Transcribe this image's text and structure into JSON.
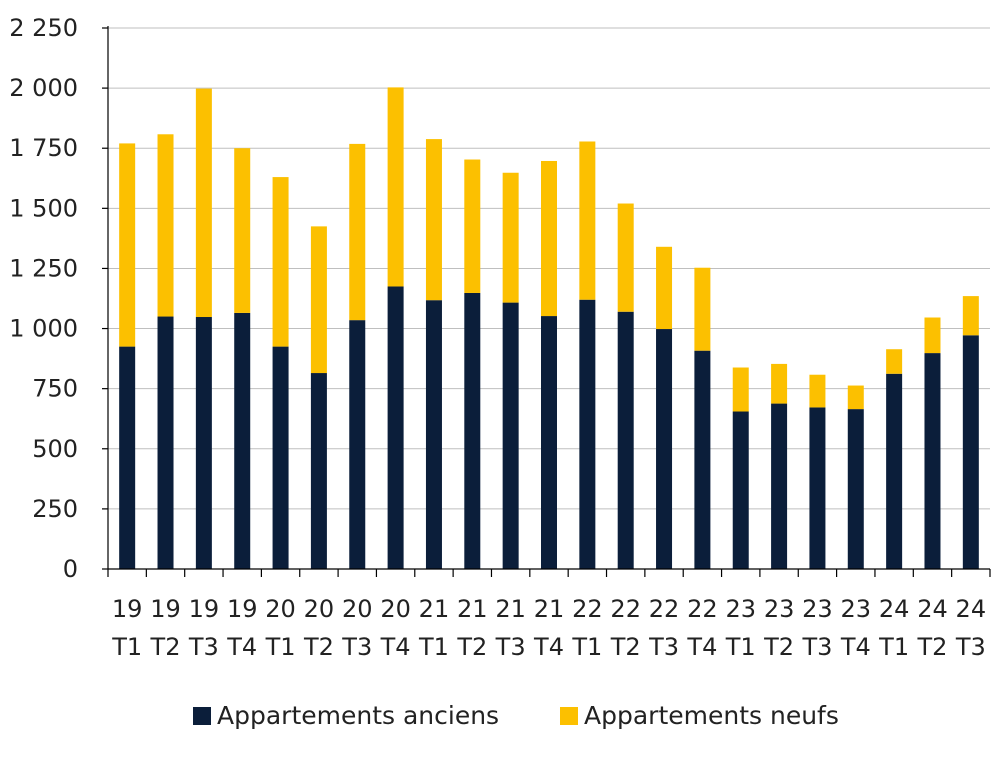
{
  "chart_data": {
    "type": "bar",
    "stacked": true,
    "categories": [
      [
        "19",
        "T1"
      ],
      [
        "19",
        "T2"
      ],
      [
        "19",
        "T3"
      ],
      [
        "19",
        "T4"
      ],
      [
        "20",
        "T1"
      ],
      [
        "20",
        "T2"
      ],
      [
        "20",
        "T3"
      ],
      [
        "20",
        "T4"
      ],
      [
        "21",
        "T1"
      ],
      [
        "21",
        "T2"
      ],
      [
        "21",
        "T3"
      ],
      [
        "21",
        "T4"
      ],
      [
        "22",
        "T1"
      ],
      [
        "22",
        "T2"
      ],
      [
        "22",
        "T3"
      ],
      [
        "22",
        "T4"
      ],
      [
        "23",
        "T1"
      ],
      [
        "23",
        "T2"
      ],
      [
        "23",
        "T3"
      ],
      [
        "23",
        "T4"
      ],
      [
        "24",
        "T1"
      ],
      [
        "24",
        "T2"
      ],
      [
        "24",
        "T3"
      ]
    ],
    "series": [
      {
        "name": "Appartements anciens",
        "color": "#0b1e3a",
        "values": [
          925,
          1050,
          1048,
          1065,
          925,
          815,
          1035,
          1175,
          1118,
          1148,
          1108,
          1052,
          1120,
          1070,
          998,
          908,
          655,
          688,
          672,
          665,
          812,
          898,
          972
        ]
      },
      {
        "name": "Appartements neufs",
        "color": "#fcc000",
        "values": [
          845,
          758,
          950,
          685,
          705,
          610,
          733,
          828,
          670,
          555,
          540,
          645,
          658,
          450,
          342,
          345,
          183,
          165,
          136,
          98,
          102,
          148,
          163
        ]
      }
    ],
    "ylim": [
      0,
      2250
    ],
    "yticks": [
      {
        "value": 0,
        "label": "0"
      },
      {
        "value": 250,
        "label": "250"
      },
      {
        "value": 500,
        "label": "500"
      },
      {
        "value": 750,
        "label": "750"
      },
      {
        "value": 1000,
        "label": "1 000"
      },
      {
        "value": 1250,
        "label": "1 250"
      },
      {
        "value": 1500,
        "label": "1 500"
      },
      {
        "value": 1750,
        "label": "1 750"
      },
      {
        "value": 2000,
        "label": "2 000"
      },
      {
        "value": 2250,
        "label": "2 250"
      }
    ],
    "grid": true,
    "legend_position": "bottom-center",
    "gridline_color": "#bfbfbf",
    "axis_color": "#000000",
    "title": "",
    "xlabel": "",
    "ylabel": ""
  }
}
